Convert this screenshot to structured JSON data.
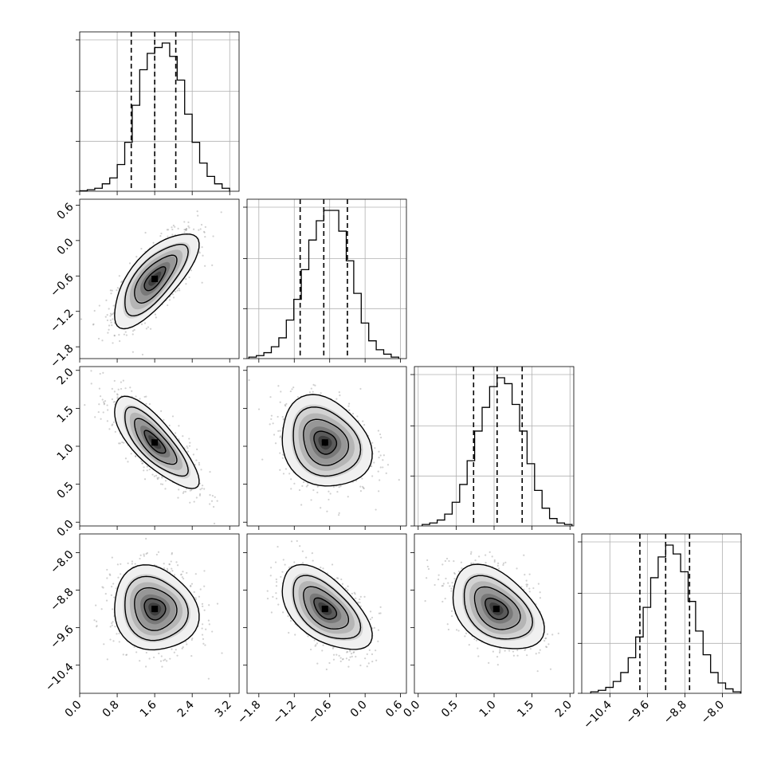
{
  "chart_data": {
    "type": "corner",
    "n_params": 4,
    "colors": {
      "line": "#000000",
      "grid": "#b0b0b0",
      "scatter": "#9a9a9a",
      "fill_light": "#f0f0f0",
      "fill_dark": "#202020"
    },
    "grid": true,
    "params": [
      {
        "lim": [
          0.0,
          3.4
        ],
        "ticks": [
          0.0,
          0.8,
          1.6,
          2.4,
          3.2
        ],
        "tick_labels": [
          "0.0",
          "0.8",
          "1.6",
          "2.4",
          "3.2"
        ],
        "quantiles": [
          1.1,
          1.6,
          2.05
        ],
        "hist": [
          0.003,
          0.01,
          0.02,
          0.05,
          0.09,
          0.18,
          0.33,
          0.58,
          0.82,
          0.93,
          0.97,
          1.0,
          0.91,
          0.75,
          0.52,
          0.33,
          0.19,
          0.1,
          0.05,
          0.02
        ]
      },
      {
        "lim": [
          -2.0,
          0.7
        ],
        "ticks": [
          -1.8,
          -1.2,
          -0.6,
          0.0,
          0.6
        ],
        "tick_labels": [
          "−1.8",
          "−1.2",
          "−0.6",
          "0.0",
          "0.6"
        ],
        "quantiles": [
          -1.1,
          -0.7,
          -0.3
        ],
        "hist": [
          0.01,
          0.02,
          0.04,
          0.08,
          0.14,
          0.26,
          0.4,
          0.6,
          0.8,
          0.93,
          1.0,
          1.0,
          0.86,
          0.66,
          0.44,
          0.24,
          0.12,
          0.06,
          0.03,
          0.01
        ]
      },
      {
        "lim": [
          -0.05,
          2.05
        ],
        "ticks": [
          0.0,
          0.5,
          1.0,
          1.5,
          2.0
        ],
        "tick_labels": [
          "0.0",
          "0.5",
          "1.0",
          "1.5",
          "2.0"
        ],
        "quantiles": [
          0.73,
          1.04,
          1.37
        ],
        "hist": [
          0.01,
          0.02,
          0.04,
          0.08,
          0.16,
          0.28,
          0.44,
          0.64,
          0.8,
          0.94,
          1.0,
          0.96,
          0.82,
          0.64,
          0.42,
          0.24,
          0.12,
          0.05,
          0.02,
          0.01
        ]
      },
      {
        "lim": [
          -11.0,
          -7.6
        ],
        "ticks": [
          -10.4,
          -9.6,
          -8.8,
          -8.0
        ],
        "tick_labels": [
          "−10.4",
          "−9.6",
          "−8.8",
          "−8.0"
        ],
        "quantiles": [
          -9.76,
          -9.21,
          -8.7
        ],
        "hist": [
          0.01,
          0.02,
          0.04,
          0.08,
          0.14,
          0.24,
          0.38,
          0.58,
          0.78,
          0.92,
          1.0,
          0.94,
          0.82,
          0.62,
          0.42,
          0.26,
          0.14,
          0.07,
          0.03,
          0.01
        ]
      }
    ],
    "pairs": [
      {
        "row": 1,
        "col": 0,
        "center": [
          1.6,
          -0.65
        ],
        "sd": [
          0.45,
          0.4
        ],
        "corr": 0.72
      },
      {
        "row": 2,
        "col": 0,
        "center": [
          1.6,
          1.05
        ],
        "sd": [
          0.45,
          0.3
        ],
        "corr": -0.78
      },
      {
        "row": 2,
        "col": 1,
        "center": [
          -0.68,
          1.05
        ],
        "sd": [
          0.38,
          0.3
        ],
        "corr": -0.2
      },
      {
        "row": 3,
        "col": 0,
        "center": [
          1.6,
          -9.2
        ],
        "sd": [
          0.45,
          0.45
        ],
        "corr": -0.12
      },
      {
        "row": 3,
        "col": 1,
        "center": [
          -0.68,
          -9.2
        ],
        "sd": [
          0.38,
          0.45
        ],
        "corr": -0.55
      },
      {
        "row": 3,
        "col": 2,
        "center": [
          1.03,
          -9.2
        ],
        "sd": [
          0.3,
          0.45
        ],
        "corr": -0.4
      }
    ]
  }
}
